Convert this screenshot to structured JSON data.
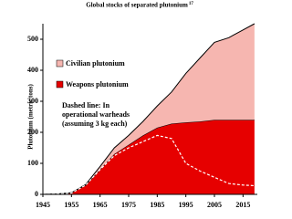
{
  "chart_data": {
    "type": "stacked-area",
    "title": "Global stocks of separated plutonium",
    "title_note": "17",
    "ylabel": "Plutonium (metric tons)",
    "x": [
      1945,
      1950,
      1955,
      1960,
      1965,
      1970,
      1975,
      1980,
      1985,
      1990,
      1995,
      2000,
      2005,
      2010,
      2015,
      2019
    ],
    "series": [
      {
        "name": "Weapons plutonium",
        "color": "#e60000",
        "values": [
          0,
          1,
          5,
          30,
          80,
          130,
          160,
          190,
          215,
          228,
          232,
          235,
          240,
          240,
          240,
          240
        ]
      },
      {
        "name": "Civilian plutonium",
        "color": "#f6b6b0",
        "values": [
          0,
          0,
          0,
          2,
          10,
          20,
          30,
          45,
          70,
          102,
          158,
          205,
          250,
          265,
          290,
          310
        ]
      }
    ],
    "overlay": {
      "style": "dashed",
      "color": "#ffffff",
      "values": [
        0,
        1,
        4,
        30,
        80,
        125,
        150,
        170,
        190,
        180,
        100,
        75,
        55,
        35,
        30,
        28
      ]
    },
    "annotation": [
      "Dashed line: In",
      "operational warheads",
      "(assuming 3 kg each)"
    ],
    "xlim": [
      1945,
      2020
    ],
    "xticks": [
      1945,
      1955,
      1965,
      1975,
      1985,
      1995,
      2005,
      2015
    ],
    "ylim": [
      0,
      550
    ],
    "yticks": [
      0,
      100,
      200,
      300,
      400,
      500
    ]
  }
}
